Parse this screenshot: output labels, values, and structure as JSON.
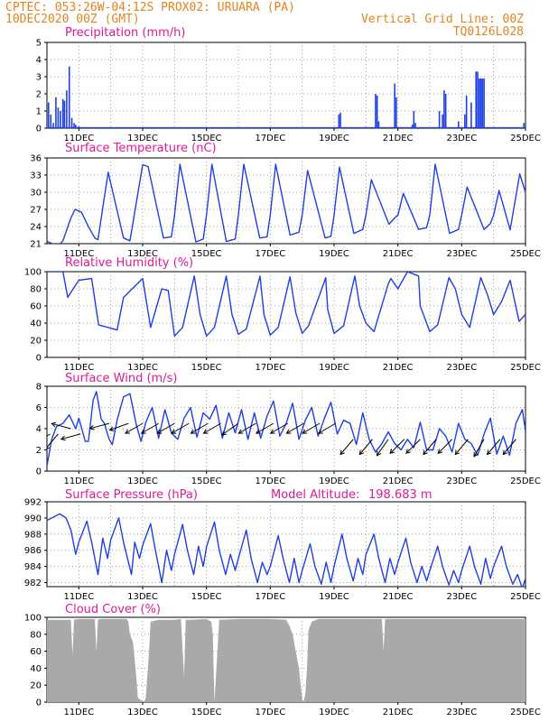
{
  "header": {
    "left_line1": "CPTEC:   053:26W-04:12S   PROX02: URUARA (PA)",
    "left_line2": "10DEC2020 00Z (GMT)",
    "right_line1": "Vertical Grid Line: 00Z",
    "right_line2": "TQ0126L028"
  },
  "colors": {
    "header": "#e8821e",
    "titles": "#e0189a",
    "series_line": "#1f3fe6",
    "cloud_fill": "#a9a9a9",
    "arrows": "#000000"
  },
  "x_axis": {
    "start": "10DEC2020 00Z",
    "end": "25DEC2020 00Z",
    "tick_labels": [
      "11DEC",
      "13DEC",
      "15DEC",
      "17DEC",
      "19DEC",
      "21DEC",
      "23DEC",
      "25DEC"
    ],
    "tick_days": [
      1,
      3,
      5,
      7,
      9,
      11,
      13,
      15
    ],
    "day_range": [
      0,
      15
    ]
  },
  "chart_data": [
    {
      "type": "bar",
      "title": "Precipitation (mm/h)",
      "ylim": [
        0,
        5
      ],
      "yticks": [
        "0",
        "1",
        "2",
        "3",
        "4",
        "5"
      ],
      "day": [
        0.05,
        0.12,
        0.2,
        0.28,
        0.35,
        0.42,
        0.5,
        0.55,
        0.62,
        0.7,
        0.78,
        0.85,
        0.9,
        1.0,
        9.15,
        9.2,
        10.3,
        10.35,
        10.4,
        10.9,
        10.95,
        11.45,
        11.5,
        11.55,
        12.3,
        12.4,
        12.45,
        12.5,
        12.9,
        13.1,
        13.15,
        13.3,
        13.45,
        13.5,
        13.55,
        13.6,
        13.65,
        13.7,
        14.95
      ],
      "values": [
        1.5,
        0.8,
        0.3,
        1.8,
        1.2,
        1.0,
        1.7,
        1.6,
        2.2,
        3.6,
        0.6,
        0.3,
        0.2,
        0.1,
        0.8,
        0.9,
        2.0,
        1.9,
        0.4,
        2.6,
        1.8,
        0.2,
        1.0,
        0.3,
        1.0,
        0.8,
        2.2,
        2.0,
        0.4,
        0.8,
        1.9,
        1.5,
        3.3,
        3.3,
        2.9,
        2.9,
        2.9,
        2.9,
        0.3
      ]
    },
    {
      "type": "line",
      "title": "Surface Temperature (nC)",
      "ylim": [
        21,
        36
      ],
      "yticks": [
        "21",
        "24",
        "27",
        "30",
        "33",
        "36"
      ],
      "day": [
        0,
        0.35,
        0.5,
        0.75,
        0.88,
        1.08,
        1.3,
        1.5,
        1.6,
        1.92,
        2.4,
        2.6,
        3.0,
        3.17,
        3.65,
        3.9,
        4.0,
        4.17,
        4.67,
        4.9,
        5.0,
        5.17,
        5.62,
        5.9,
        6.0,
        6.17,
        6.67,
        6.9,
        7.0,
        7.17,
        7.62,
        7.9,
        8.0,
        8.17,
        8.72,
        8.9,
        9.0,
        9.17,
        9.62,
        9.9,
        10.0,
        10.17,
        10.72,
        10.9,
        11.0,
        11.17,
        11.65,
        11.9,
        12.0,
        12.17,
        12.62,
        12.9,
        13.0,
        13.17,
        13.7,
        13.9,
        14.0,
        14.17,
        14.52,
        14.82,
        15.0
      ],
      "values": [
        21.4,
        20.6,
        21.5,
        25.5,
        27.0,
        26.5,
        24.0,
        22.0,
        21.7,
        33.5,
        22.0,
        21.5,
        34.8,
        34.5,
        22.0,
        22.2,
        26.0,
        34.9,
        21.3,
        21.8,
        26.0,
        34.9,
        21.4,
        21.8,
        26.0,
        34.9,
        22.0,
        22.2,
        26.0,
        34.9,
        22.5,
        23.0,
        26.0,
        33.8,
        22.0,
        22.3,
        26.0,
        34.4,
        22.8,
        23.5,
        26.0,
        32.2,
        24.4,
        25.5,
        26.0,
        29.8,
        23.5,
        23.8,
        26.0,
        34.9,
        22.8,
        23.5,
        26.0,
        30.9,
        23.5,
        24.5,
        26.0,
        30.3,
        23.4,
        33.2,
        30.0
      ]
    },
    {
      "type": "line",
      "title": "Relative Humidity (%)",
      "ylim": [
        0,
        100
      ],
      "yticks": [
        "0",
        "20",
        "40",
        "60",
        "80",
        "100"
      ],
      "day": [
        0,
        0.5,
        0.65,
        1.0,
        1.4,
        1.62,
        2.2,
        2.4,
        3.0,
        3.25,
        3.6,
        3.8,
        4.0,
        4.25,
        4.62,
        4.8,
        5.0,
        5.25,
        5.62,
        5.8,
        6.0,
        6.25,
        6.68,
        6.8,
        7.0,
        7.25,
        7.62,
        7.8,
        8.0,
        8.2,
        8.74,
        8.8,
        9.0,
        9.3,
        9.65,
        9.8,
        10.0,
        10.25,
        10.7,
        10.78,
        11.0,
        11.3,
        11.65,
        11.7,
        12.0,
        12.25,
        12.6,
        12.8,
        13.0,
        13.25,
        13.6,
        13.8,
        14.0,
        14.25,
        14.52,
        14.8,
        15.0
      ],
      "values": [
        100,
        100,
        70,
        90,
        92,
        38,
        32,
        70,
        92,
        35,
        80,
        78,
        25,
        35,
        95,
        50,
        25,
        35,
        95,
        50,
        27,
        33,
        95,
        50,
        26,
        35,
        94,
        52,
        28,
        37,
        93,
        56,
        28,
        37,
        95,
        60,
        40,
        30,
        86,
        92,
        80,
        100,
        95,
        60,
        30,
        38,
        93,
        80,
        50,
        35,
        93,
        74,
        50,
        65,
        90,
        42,
        50
      ]
    },
    {
      "type": "line",
      "title": "Surface Wind (m/s)",
      "ylim": [
        0,
        8
      ],
      "yticks": [
        "0",
        "2",
        "4",
        "6",
        "8"
      ],
      "day": [
        0,
        0.15,
        0.3,
        0.5,
        0.7,
        0.9,
        1.0,
        1.2,
        1.3,
        1.45,
        1.55,
        1.7,
        1.8,
        1.95,
        2.05,
        2.2,
        2.4,
        2.6,
        2.8,
        2.95,
        3.1,
        3.3,
        3.5,
        3.7,
        3.9,
        4.1,
        4.3,
        4.5,
        4.7,
        4.9,
        5.1,
        5.3,
        5.5,
        5.7,
        5.9,
        6.1,
        6.3,
        6.5,
        6.7,
        6.9,
        7.1,
        7.3,
        7.5,
        7.7,
        7.9,
        8.1,
        8.3,
        8.5,
        8.7,
        8.9,
        9.1,
        9.3,
        9.5,
        9.7,
        9.9,
        10.1,
        10.3,
        10.5,
        10.7,
        10.9,
        11.1,
        11.3,
        11.5,
        11.7,
        11.9,
        12.1,
        12.3,
        12.5,
        12.7,
        12.9,
        13.1,
        13.3,
        13.5,
        13.7,
        13.9,
        14.1,
        14.3,
        14.5,
        14.7,
        14.9,
        15.0
      ],
      "values": [
        0.5,
        3.0,
        4.2,
        4.5,
        5.3,
        4.0,
        5.0,
        2.8,
        2.8,
        6.7,
        7.5,
        4.9,
        4.5,
        3.0,
        2.5,
        4.8,
        7.0,
        7.3,
        4.4,
        2.8,
        4.6,
        6.0,
        3.1,
        5.8,
        3.6,
        3.0,
        5.0,
        6.0,
        3.2,
        5.5,
        4.9,
        6.2,
        3.1,
        5.5,
        3.6,
        5.8,
        3.0,
        5.5,
        3.1,
        5.2,
        6.6,
        3.3,
        4.5,
        6.4,
        3.0,
        4.8,
        6.0,
        3.3,
        5.0,
        6.5,
        3.5,
        4.8,
        4.5,
        2.5,
        5.5,
        3.0,
        1.8,
        2.6,
        3.7,
        2.6,
        2.0,
        3.0,
        2.2,
        4.6,
        2.0,
        2.0,
        4.0,
        3.3,
        1.8,
        4.5,
        3.0,
        2.6,
        1.5,
        3.5,
        5.0,
        1.6,
        3.3,
        1.5,
        4.5,
        5.8,
        3.8
      ]
    },
    {
      "type": "line",
      "title": "Surface Pressure (hPa)",
      "ylim": [
        981.5,
        992
      ],
      "yticks": [
        "982",
        "984",
        "986",
        "988",
        "990",
        "992"
      ],
      "annotation_label": "Model Altitude:",
      "annotation_value": "198.683 m",
      "day": [
        0,
        0.4,
        0.6,
        0.75,
        0.9,
        1.0,
        1.25,
        1.4,
        1.6,
        1.75,
        1.9,
        2.0,
        2.25,
        2.4,
        2.65,
        2.75,
        2.9,
        3.0,
        3.25,
        3.4,
        3.6,
        3.75,
        3.9,
        4.0,
        4.25,
        4.4,
        4.6,
        4.75,
        4.9,
        5.0,
        5.25,
        5.4,
        5.6,
        5.75,
        5.9,
        6.0,
        6.25,
        6.4,
        6.6,
        6.75,
        6.9,
        7.0,
        7.25,
        7.4,
        7.6,
        7.75,
        7.9,
        8.0,
        8.25,
        8.4,
        8.6,
        8.75,
        8.9,
        9.0,
        9.25,
        9.4,
        9.6,
        9.75,
        9.9,
        10.0,
        10.25,
        10.4,
        10.6,
        10.75,
        10.9,
        11.0,
        11.25,
        11.4,
        11.6,
        11.75,
        11.9,
        12.0,
        12.25,
        12.4,
        12.6,
        12.75,
        12.9,
        13.0,
        13.25,
        13.4,
        13.6,
        13.75,
        13.9,
        14.0,
        14.25,
        14.4,
        14.6,
        14.75,
        14.9,
        15.0
      ],
      "values": [
        989.7,
        990.5,
        990.0,
        988.5,
        985.5,
        987.0,
        989.6,
        987.0,
        983.0,
        987.5,
        985.0,
        987.3,
        990.0,
        987.0,
        983.0,
        987.0,
        985.0,
        986.6,
        989.3,
        986.0,
        982.0,
        986.0,
        983.5,
        985.5,
        989.2,
        986.0,
        983.0,
        986.5,
        984.0,
        986.4,
        989.5,
        986.0,
        983.0,
        985.5,
        983.5,
        985.0,
        988.5,
        985.0,
        982.0,
        984.5,
        983.0,
        984.0,
        987.8,
        985.0,
        982.0,
        985.0,
        982.0,
        983.5,
        986.8,
        984.0,
        981.8,
        984.5,
        982.0,
        984.0,
        988.0,
        985.0,
        982.2,
        985.0,
        983.0,
        985.5,
        988.0,
        985.0,
        982.0,
        985.0,
        983.0,
        984.5,
        987.5,
        984.5,
        982.0,
        984.0,
        982.2,
        983.5,
        986.5,
        984.0,
        981.7,
        983.5,
        982.0,
        983.5,
        986.5,
        984.0,
        981.8,
        985.0,
        982.5,
        984.0,
        986.5,
        984.0,
        981.8,
        983.0,
        981.3,
        982.5
      ]
    },
    {
      "type": "area",
      "title": "Cloud Cover (%)",
      "ylim": [
        0,
        100
      ],
      "yticks": [
        "0",
        "20",
        "40",
        "60",
        "80",
        "100"
      ],
      "day": [
        0,
        0.7,
        0.75,
        0.8,
        0.85,
        1.0,
        1.5,
        1.55,
        1.6,
        1.65,
        2.0,
        2.5,
        2.55,
        2.6,
        2.7,
        2.8,
        2.85,
        3.0,
        3.05,
        3.1,
        3.2,
        3.25,
        3.5,
        4.0,
        4.2,
        4.3,
        4.35,
        4.5,
        5.0,
        5.15,
        5.2,
        5.25,
        5.4,
        6.0,
        7.0,
        7.5,
        7.6,
        7.7,
        7.8,
        7.9,
        8.0,
        8.05,
        8.1,
        8.15,
        8.2,
        8.3,
        8.5,
        9.0,
        10.0,
        10.5,
        10.55,
        10.6,
        11.0,
        12.0,
        13.0,
        14.0,
        15.0
      ],
      "values": [
        97,
        97,
        97,
        55,
        97,
        98,
        98,
        60,
        97,
        98,
        98,
        98,
        95,
        80,
        70,
        30,
        5,
        1,
        1,
        5,
        60,
        95,
        97,
        97,
        98,
        30,
        97,
        97,
        98,
        95,
        80,
        0,
        97,
        98,
        98,
        97,
        90,
        80,
        60,
        40,
        3,
        1,
        10,
        40,
        85,
        95,
        98,
        98,
        98,
        98,
        60,
        98,
        98,
        98,
        98,
        98,
        98
      ]
    }
  ],
  "wind_barbs": [
    {
      "day": 0.1,
      "dir_deg": 30,
      "mag": 3.5
    },
    {
      "day": 0.35,
      "dir_deg": 50,
      "mag": 3.5
    },
    {
      "day": 0.75,
      "dir_deg": -15,
      "mag": 4.0
    },
    {
      "day": 1.05,
      "dir_deg": 15,
      "mag": 3.5
    },
    {
      "day": 1.95,
      "dir_deg": 15,
      "mag": 4.5
    },
    {
      "day": 2.55,
      "dir_deg": 20,
      "mag": 4.5
    },
    {
      "day": 3.0,
      "dir_deg": 30,
      "mag": 4.5
    },
    {
      "day": 3.5,
      "dir_deg": 30,
      "mag": 4.5
    },
    {
      "day": 4.0,
      "dir_deg": 30,
      "mag": 4.5
    },
    {
      "day": 4.45,
      "dir_deg": 30,
      "mag": 4.5
    },
    {
      "day": 5.05,
      "dir_deg": 30,
      "mag": 4.5
    },
    {
      "day": 5.45,
      "dir_deg": 30,
      "mag": 4.5
    },
    {
      "day": 6.0,
      "dir_deg": 35,
      "mag": 4.5
    },
    {
      "day": 6.55,
      "dir_deg": 30,
      "mag": 4.5
    },
    {
      "day": 7.1,
      "dir_deg": 30,
      "mag": 4.5
    },
    {
      "day": 7.55,
      "dir_deg": 30,
      "mag": 4.5
    },
    {
      "day": 8.05,
      "dir_deg": 30,
      "mag": 4.5
    },
    {
      "day": 8.55,
      "dir_deg": 30,
      "mag": 4.5
    },
    {
      "day": 9.05,
      "dir_deg": 30,
      "mag": 4.5
    },
    {
      "day": 9.6,
      "dir_deg": 50,
      "mag": 3.0
    },
    {
      "day": 10.2,
      "dir_deg": 50,
      "mag": 3.0
    },
    {
      "day": 10.7,
      "dir_deg": 55,
      "mag": 3.0
    },
    {
      "day": 11.2,
      "dir_deg": 45,
      "mag": 3.0
    },
    {
      "day": 11.7,
      "dir_deg": 45,
      "mag": 3.0
    },
    {
      "day": 12.2,
      "dir_deg": 50,
      "mag": 3.0
    },
    {
      "day": 12.7,
      "dir_deg": 45,
      "mag": 3.0
    },
    {
      "day": 13.2,
      "dir_deg": 50,
      "mag": 3.0
    },
    {
      "day": 13.7,
      "dir_deg": 60,
      "mag": 3.0
    },
    {
      "day": 14.2,
      "dir_deg": 50,
      "mag": 3.0
    },
    {
      "day": 14.7,
      "dir_deg": 50,
      "mag": 3.0
    }
  ]
}
